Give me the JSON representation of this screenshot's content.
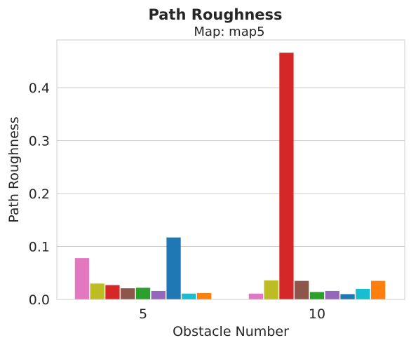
{
  "chart_data": {
    "type": "bar",
    "title": "Path Roughness",
    "subtitle": "Map: map5",
    "xlabel": "Obstacle Number",
    "ylabel": "Path Roughness",
    "categories": [
      "5",
      "10"
    ],
    "ylim": [
      0,
      0.49
    ],
    "yticks": [
      "0.0",
      "0.1",
      "0.2",
      "0.3",
      "0.4"
    ],
    "grid": true,
    "legend": "none",
    "series": [
      {
        "color": "#e377c2",
        "values": [
          0.078,
          0.011
        ]
      },
      {
        "color": "#bcbd22",
        "values": [
          0.03,
          0.036
        ]
      },
      {
        "color": "#d62728",
        "values": [
          0.027,
          0.466
        ]
      },
      {
        "color": "#8c564b",
        "values": [
          0.021,
          0.035
        ]
      },
      {
        "color": "#2ca02c",
        "values": [
          0.022,
          0.014
        ]
      },
      {
        "color": "#9467bd",
        "values": [
          0.016,
          0.016
        ]
      },
      {
        "color": "#1f77b4",
        "values": [
          0.117,
          0.01
        ]
      },
      {
        "color": "#17becf",
        "values": [
          0.011,
          0.02
        ]
      },
      {
        "color": "#ff7f0e",
        "values": [
          0.012,
          0.035
        ]
      }
    ]
  }
}
